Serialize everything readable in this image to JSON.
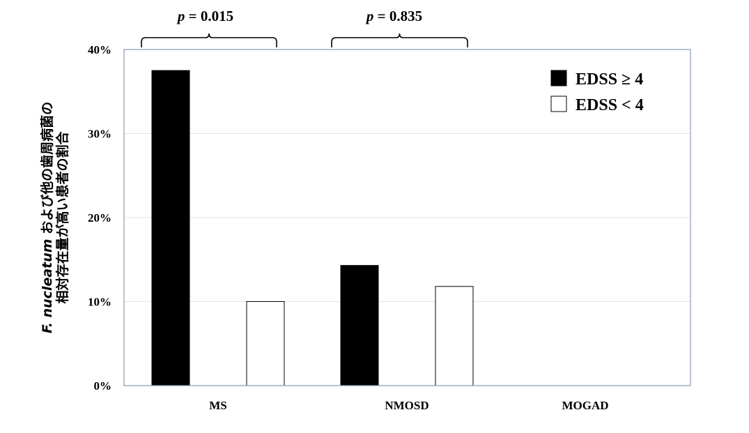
{
  "chart_data": {
    "type": "bar",
    "categories": [
      "MS",
      "NMOSD",
      "MOGAD"
    ],
    "series": [
      {
        "name": "EDSS ≥ 4",
        "values": [
          37.5,
          14.3,
          0
        ],
        "color": "#000000"
      },
      {
        "name": "EDSS < 4",
        "values": [
          10.0,
          11.8,
          0
        ],
        "color": "#ffffff"
      }
    ],
    "ylabel_line1_italic": "F. nucleatum",
    "ylabel_line1_rest": " および他の歯周病菌の",
    "ylabel_line2": "相対存在量が高い患者の割合",
    "ylim": [
      0,
      40
    ],
    "yticks": [
      0,
      10,
      20,
      30,
      40
    ],
    "ytick_labels": [
      "0%",
      "10%",
      "20%",
      "30%",
      "40%"
    ],
    "grid": "horizontal",
    "legend_position": "top-right",
    "annotations": [
      {
        "category": "MS",
        "p_label": "p",
        "text": " = 0.015"
      },
      {
        "category": "NMOSD",
        "p_label": "p",
        "text": " = 0.835"
      }
    ]
  }
}
